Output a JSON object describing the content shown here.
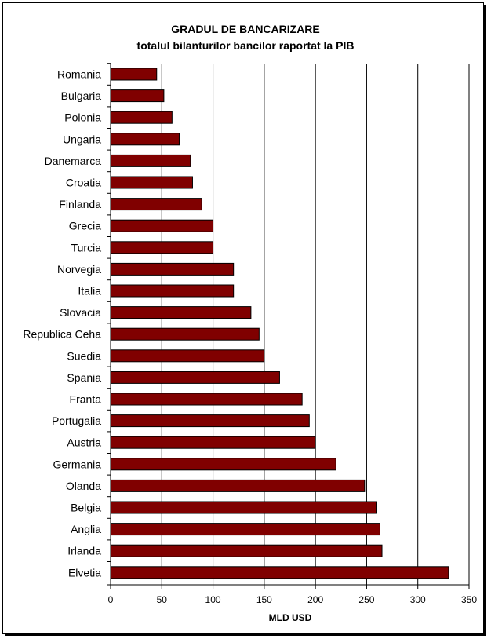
{
  "chart_data": {
    "type": "bar",
    "orientation": "horizontal",
    "title": "GRADUL DE BANCARIZARE",
    "subtitle": "totalul bilanturilor bancilor raportat la PIB",
    "xlabel": "MLD USD",
    "ylabel": "",
    "xlim": [
      0,
      350
    ],
    "x_ticks": [
      0,
      50,
      100,
      150,
      200,
      250,
      300,
      350
    ],
    "grid": "vertical",
    "legend": "none",
    "categories": [
      "Romania",
      "Bulgaria",
      "Polonia",
      "Ungaria",
      "Danemarca",
      "Croatia",
      "Finlanda",
      "Grecia",
      "Turcia",
      "Norvegia",
      "Italia",
      "Slovacia",
      "Republica Ceha",
      "Suedia",
      "Spania",
      "Franta",
      "Portugalia",
      "Austria",
      "Germania",
      "Olanda",
      "Belgia",
      "Anglia",
      "Irlanda",
      "Elvetia"
    ],
    "values": [
      45,
      52,
      60,
      67,
      78,
      80,
      89,
      100,
      100,
      120,
      120,
      137,
      145,
      150,
      165,
      187,
      194,
      200,
      220,
      248,
      260,
      263,
      265,
      330
    ],
    "bar_color": "#800000"
  }
}
